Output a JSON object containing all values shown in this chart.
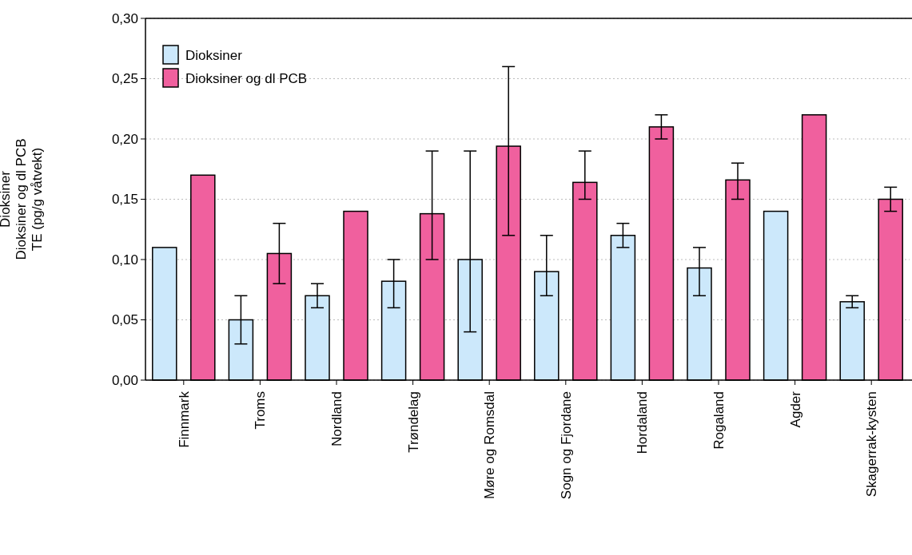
{
  "chart_data": {
    "type": "bar",
    "ylabel": "Dioksiner\nDioksiner og dl PCB\nTE (pg/g våtvekt)",
    "categories": [
      "Finnmark",
      "Troms",
      "Nordland",
      "Trøndelag",
      "Møre og Romsdal",
      "Sogn og Fjordane",
      "Hordaland",
      "Rogaland",
      "Agder",
      "Skagerrak-kysten"
    ],
    "series": [
      {
        "name": "Dioksiner",
        "color": "#cce8fb",
        "values": [
          0.11,
          0.05,
          0.07,
          0.082,
          0.1,
          0.09,
          0.12,
          0.093,
          0.14,
          0.065
        ],
        "errors": [
          null,
          [
            0.03,
            0.07
          ],
          [
            0.06,
            0.08
          ],
          [
            0.06,
            0.1
          ],
          [
            0.04,
            0.19
          ],
          [
            0.07,
            0.12
          ],
          [
            0.11,
            0.13
          ],
          [
            0.07,
            0.11
          ],
          null,
          [
            0.06,
            0.07
          ]
        ]
      },
      {
        "name": "Dioksiner og dl PCB",
        "color": "#f0609e",
        "values": [
          0.17,
          0.105,
          0.14,
          0.138,
          0.194,
          0.164,
          0.21,
          0.166,
          0.22,
          0.15
        ],
        "errors": [
          null,
          [
            0.08,
            0.13
          ],
          null,
          [
            0.1,
            0.19
          ],
          [
            0.12,
            0.26
          ],
          [
            0.15,
            0.19
          ],
          [
            0.2,
            0.22
          ],
          [
            0.15,
            0.18
          ],
          null,
          [
            0.14,
            0.16
          ]
        ]
      }
    ],
    "ylim": [
      0,
      0.3
    ],
    "yticks": [
      {
        "value": 0,
        "label": "0,00"
      },
      {
        "value": 0.05,
        "label": "0,05"
      },
      {
        "value": 0.1,
        "label": "0,10"
      },
      {
        "value": 0.15,
        "label": "0,15"
      },
      {
        "value": 0.2,
        "label": "0,20"
      },
      {
        "value": 0.25,
        "label": "0,25"
      },
      {
        "value": 0.3,
        "label": "0,30"
      }
    ],
    "grid": "y",
    "legend": "top left"
  }
}
